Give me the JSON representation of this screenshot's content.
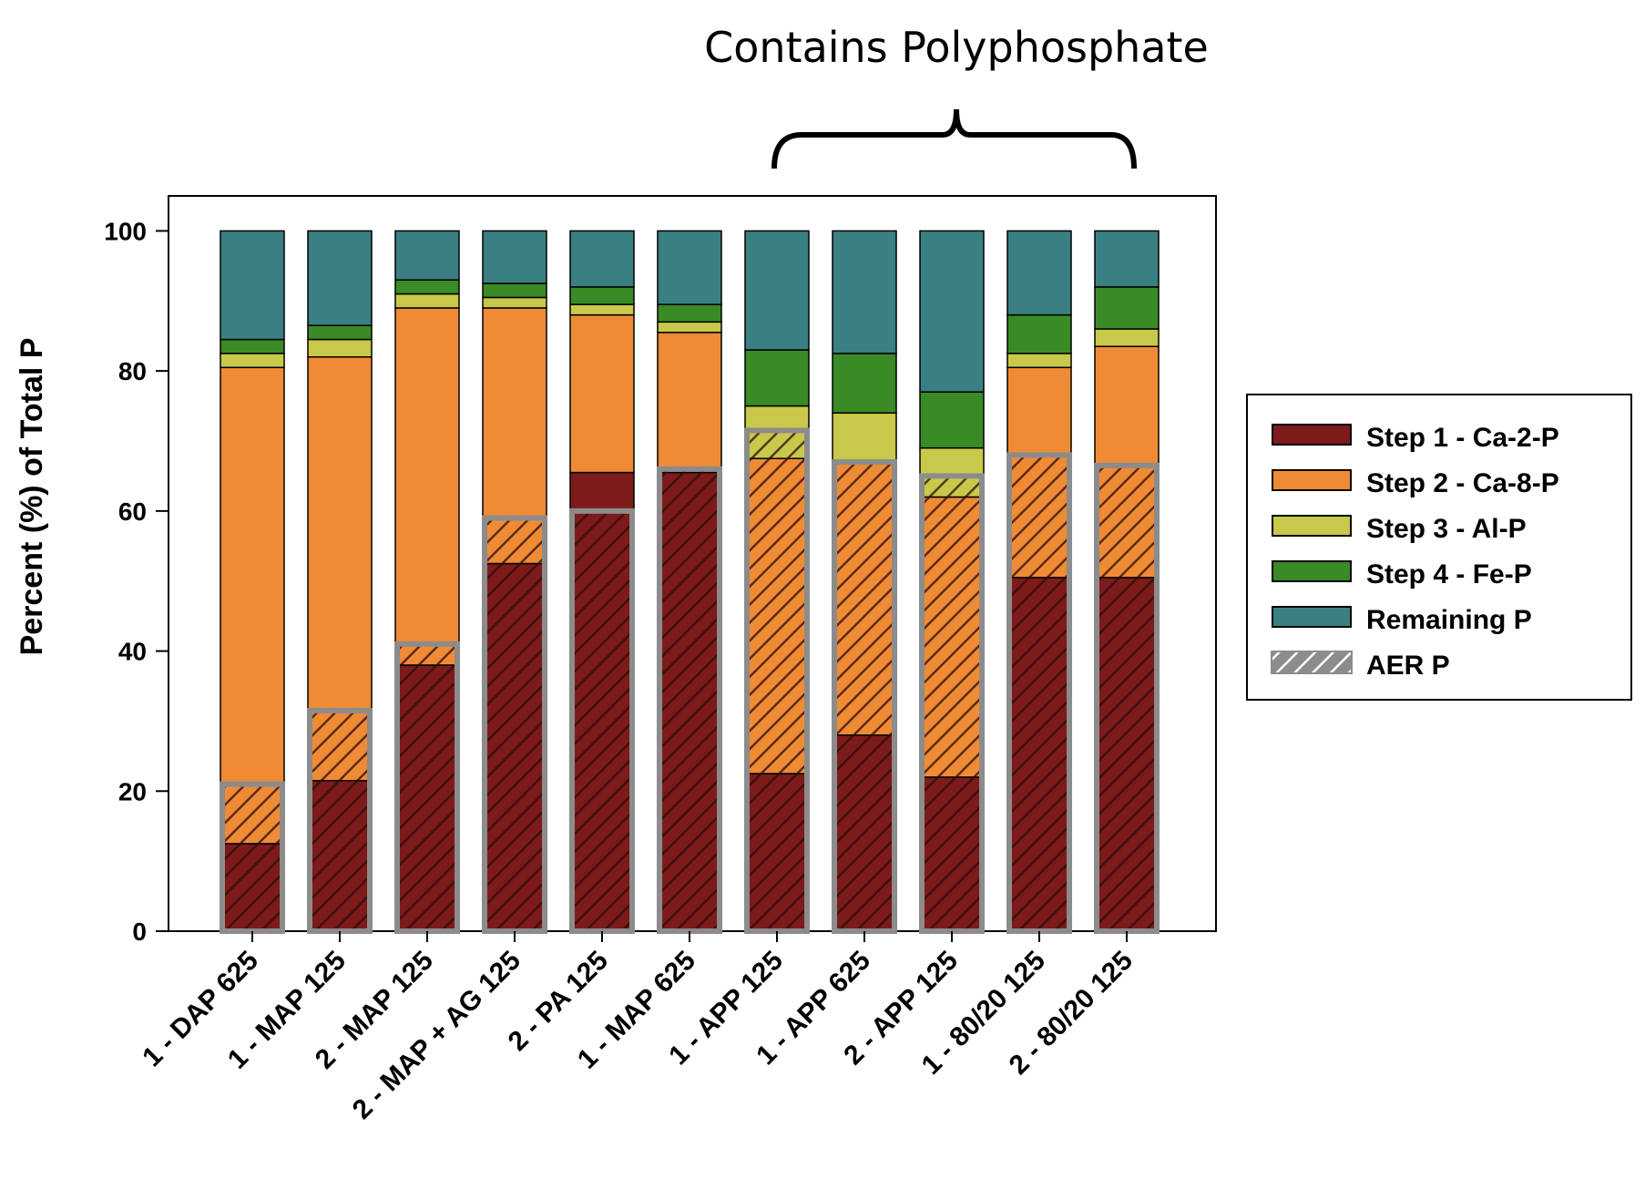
{
  "annotation": {
    "bracket_label": "Contains Polyphosphate"
  },
  "chart_data": {
    "type": "bar",
    "stacked": true,
    "title": "",
    "xlabel": "",
    "ylabel": "Percent (%) of Total P",
    "ylim": [
      0,
      105
    ],
    "yticks": [
      "0",
      "20",
      "40",
      "60",
      "80",
      "100"
    ],
    "grid": false,
    "legend_position": "right",
    "categories": [
      "1 - DAP 625",
      "1 - MAP 125",
      "2 - MAP 125",
      "2 - MAP + AG 125",
      "2 - PA 125",
      "1 - MAP 625",
      "1 - APP 125",
      "1 - APP 625",
      "2 - APP 125",
      "1 - 80/20 125",
      "2 - 80/20 125"
    ],
    "series": [
      {
        "name": "Step 1 - Ca-2-P",
        "color": "#7d1a1a",
        "values": [
          12.5,
          21.5,
          38,
          52.5,
          65.5,
          65.5,
          22.5,
          28,
          22,
          50.5,
          50.5
        ]
      },
      {
        "name": "Step 2 - Ca-8-P",
        "color": "#f08b35",
        "values": [
          68,
          60.5,
          51,
          36.5,
          22.5,
          20,
          45,
          39,
          40,
          30,
          33
        ]
      },
      {
        "name": "Step 3 - Al-P",
        "color": "#c8c94a",
        "values": [
          2,
          2.5,
          2,
          1.5,
          1.5,
          1.5,
          7.5,
          7,
          7,
          2,
          2.5
        ]
      },
      {
        "name": "Step 4 - Fe-P",
        "color": "#3a8a25",
        "values": [
          2,
          2,
          2,
          2,
          2.5,
          2.5,
          8,
          8.5,
          8,
          5.5,
          6
        ]
      },
      {
        "name": "Remaining P",
        "color": "#3a7f82",
        "values": [
          15.5,
          13.5,
          7,
          7.5,
          8,
          10.5,
          17,
          17.5,
          23,
          12,
          8
        ]
      }
    ],
    "overlay": {
      "name": "AER P",
      "pattern": "hatch",
      "values": [
        21,
        31.5,
        41,
        59,
        60,
        66,
        71.5,
        67,
        65,
        68,
        66.5
      ]
    },
    "bracket_over_categories": [
      "1 - APP 125",
      "2 - 80/20 125"
    ]
  }
}
